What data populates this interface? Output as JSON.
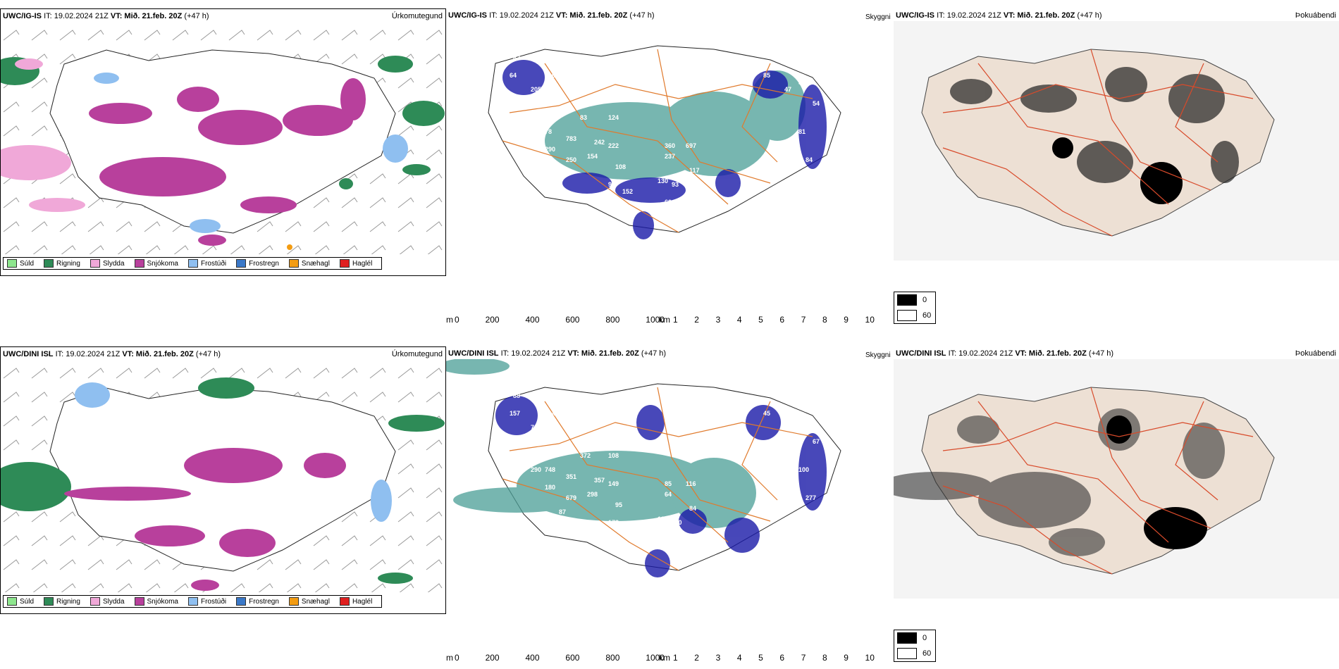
{
  "rows": [
    {
      "model": "UWC/IG-IS",
      "it": "IT: 19.02.2024 21Z",
      "vt_label": "VT:",
      "vt": "Mið. 21.feb. 20Z",
      "lead": "(+47 h)",
      "precip_title": "Úrkomutegund",
      "cloud_title": "Þokuábendi",
      "skyggni": "Skyggni"
    },
    {
      "model": "UWC/DINI ISL",
      "it": "IT: 19.02.2024 21Z",
      "vt_label": "VT:",
      "vt": "Mið. 21.feb. 20Z",
      "lead": "(+47 h)",
      "precip_title": "Úrkomutegund",
      "cloud_title": "Þokuábendi",
      "skyggni": "Skyggni"
    }
  ],
  "precip_legend": [
    {
      "label": "Súld",
      "color": "#8ee68e"
    },
    {
      "label": "Rigning",
      "color": "#2e8b57"
    },
    {
      "label": "Slydda",
      "color": "#f0a8d8"
    },
    {
      "label": "Snjókoma",
      "color": "#b8409c"
    },
    {
      "label": "Frostúði",
      "color": "#8fbff0"
    },
    {
      "label": "Frostregn",
      "color": "#3a78c8"
    },
    {
      "label": "Snæhagl",
      "color": "#f39c12"
    },
    {
      "label": "Haglél",
      "color": "#e02020"
    }
  ],
  "height_bar": {
    "unit": "m",
    "ticks": [
      "0",
      "200",
      "400",
      "600",
      "800",
      "1000"
    ]
  },
  "visibility_bar": {
    "unit": "km",
    "ticks": [
      "1",
      "2",
      "3",
      "4",
      "5",
      "6",
      "7",
      "8",
      "9",
      "10"
    ]
  },
  "cloud_legend": {
    "items": [
      "0",
      "60"
    ]
  },
  "labels_row1": [
    "82",
    "44",
    "68",
    "64",
    "205",
    "464",
    "78",
    "83",
    "314",
    "783",
    "242",
    "222",
    "290",
    "250",
    "154",
    "66",
    "109",
    "94",
    "108",
    "130",
    "93",
    "152",
    "69",
    "59",
    "54",
    "60",
    "360",
    "237",
    "697",
    "117",
    "189",
    "124",
    "185",
    "85",
    "47",
    "34",
    "54",
    "81",
    "84",
    "167"
  ],
  "labels_row2": [
    "88",
    "80",
    "45",
    "157",
    "70",
    "106",
    "748",
    "372",
    "290",
    "351",
    "357",
    "149",
    "180",
    "679",
    "298",
    "87",
    "206",
    "173",
    "95",
    "137",
    "110",
    "254",
    "398",
    "267",
    "89",
    "220",
    "85",
    "64",
    "116",
    "84",
    "134",
    "108",
    "68",
    "45",
    "139",
    "181",
    "67",
    "100",
    "277",
    "95"
  ]
}
